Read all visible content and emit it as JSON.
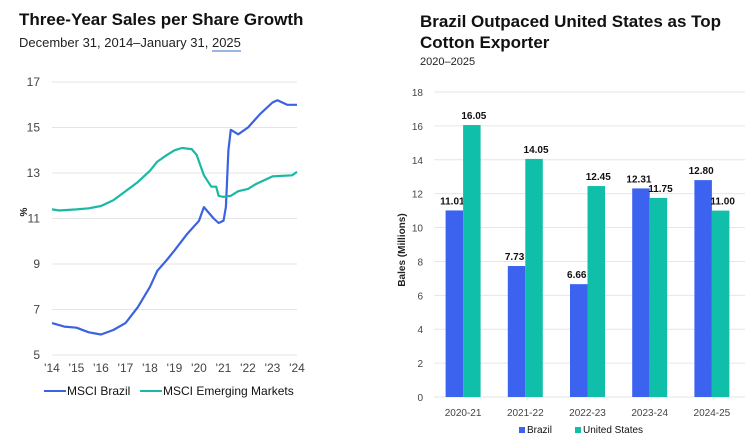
{
  "chart_data": [
    {
      "type": "line",
      "title": "Three-Year Sales per Share Growth",
      "subtitle_prefix": "December 31, 2014–January 31, ",
      "subtitle_suffix": "2025",
      "xlabel": "",
      "ylabel": "%",
      "ylim": [
        5,
        17
      ],
      "yticks": [
        5,
        7,
        9,
        11,
        13,
        15,
        17
      ],
      "xlim": [
        2014,
        2024
      ],
      "xticks": [
        2014,
        2015,
        2016,
        2017,
        2018,
        2019,
        2020,
        2021,
        2022,
        2023,
        2024
      ],
      "xtick_labels": [
        "'14",
        "'15",
        "'16",
        "'17",
        "'18",
        "'19",
        "'20",
        "'21",
        "'22",
        "'23",
        "'24"
      ],
      "grid": true,
      "legend_position": "bottom",
      "series": [
        {
          "name": "MSCI Brazil",
          "color": "#3b63e0",
          "x": [
            2014.0,
            2014.5,
            2015.0,
            2015.5,
            2016.0,
            2016.5,
            2017.0,
            2017.5,
            2018.0,
            2018.3,
            2018.7,
            2019.0,
            2019.5,
            2020.0,
            2020.2,
            2020.6,
            2020.8,
            2021.0,
            2021.1,
            2021.2,
            2021.3,
            2021.6,
            2022.0,
            2022.5,
            2023.0,
            2023.2,
            2023.6,
            2024.0
          ],
          "y": [
            6.4,
            6.25,
            6.2,
            6.0,
            5.9,
            6.1,
            6.4,
            7.1,
            8.0,
            8.7,
            9.2,
            9.6,
            10.3,
            10.9,
            11.5,
            11.0,
            10.8,
            10.9,
            11.5,
            14.0,
            14.9,
            14.7,
            15.0,
            15.6,
            16.1,
            16.2,
            16.0,
            16.0
          ]
        },
        {
          "name": "MSCI Emerging Markets",
          "color": "#1bb8a4",
          "x": [
            2014.0,
            2014.3,
            2015.0,
            2015.5,
            2016.0,
            2016.5,
            2017.0,
            2017.5,
            2018.0,
            2018.3,
            2018.7,
            2019.0,
            2019.3,
            2019.7,
            2019.9,
            2020.2,
            2020.5,
            2020.7,
            2020.8,
            2021.0,
            2021.3,
            2021.6,
            2022.0,
            2022.3,
            2022.7,
            2023.0,
            2023.8,
            2024.0
          ],
          "y": [
            11.4,
            11.35,
            11.4,
            11.45,
            11.55,
            11.8,
            12.2,
            12.6,
            13.1,
            13.5,
            13.8,
            14.0,
            14.1,
            14.05,
            13.8,
            12.9,
            12.4,
            12.4,
            12.0,
            11.95,
            12.0,
            12.2,
            12.3,
            12.5,
            12.7,
            12.85,
            12.9,
            13.05
          ]
        }
      ]
    },
    {
      "type": "bar",
      "title": "Brazil Outpaced United States as Top Cotton Exporter",
      "subtitle": "2020–2025",
      "xlabel": "",
      "ylabel": "Bales (Millions)",
      "ylim": [
        0,
        18
      ],
      "yticks": [
        0,
        2,
        4,
        6,
        8,
        10,
        12,
        14,
        16,
        18
      ],
      "grid": true,
      "legend_position": "bottom",
      "categories": [
        "2020-21",
        "2021-22",
        "2022-23",
        "2023-24",
        "2024-25"
      ],
      "series": [
        {
          "name": "Brazil",
          "color": "#3b63f0",
          "values": [
            11.01,
            7.73,
            6.66,
            12.31,
            12.8
          ],
          "labels": [
            "11.01",
            "7.73",
            "6.66",
            "12.31",
            "12.80"
          ]
        },
        {
          "name": "United States",
          "color": "#10bfaa",
          "values": [
            16.05,
            14.05,
            12.45,
            11.75,
            11.0
          ],
          "labels": [
            "16.05",
            "14.05",
            "12.45",
            "11.75",
            "11.00"
          ]
        }
      ]
    }
  ]
}
